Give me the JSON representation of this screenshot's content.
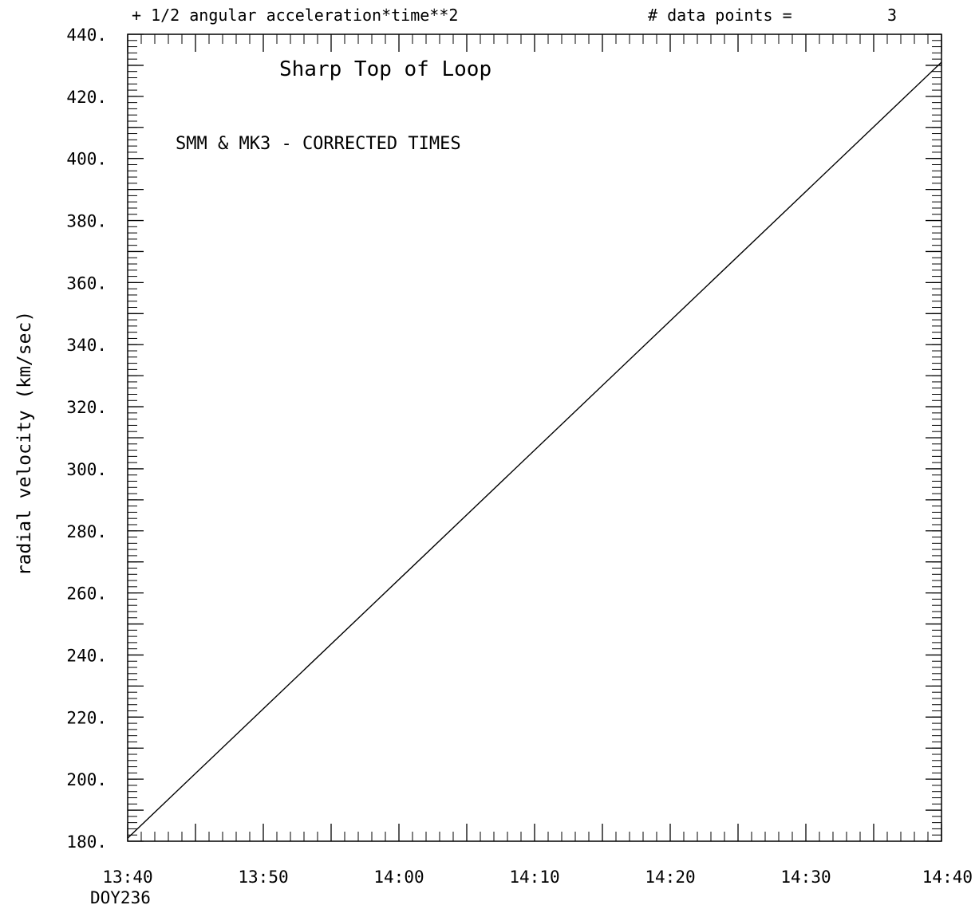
{
  "header": {
    "fit_description": "+ 1/2 angular acceleration*time**2",
    "data_points_label": "# data points =",
    "data_points_value": "3"
  },
  "chart_data": {
    "type": "line",
    "title": "Sharp Top of Loop",
    "annotation": "SMM & MK3 - CORRECTED TIMES",
    "xlabel": "",
    "ylabel": "radial velocity (km/sec)",
    "x_sublabel": "DOY236",
    "xlim": [
      "13:40",
      "14:40"
    ],
    "ylim": [
      180,
      440
    ],
    "x_ticks": [
      "13:40",
      "13:50",
      "14:00",
      "14:10",
      "14:20",
      "14:30",
      "14:40"
    ],
    "y_ticks": [
      "180.",
      "200.",
      "220.",
      "240.",
      "260.",
      "280.",
      "300.",
      "320.",
      "340.",
      "360.",
      "380.",
      "400.",
      "420.",
      "440."
    ],
    "grid": false,
    "series": [
      {
        "x": [
          "13:40",
          "14:40"
        ],
        "y": [
          181,
          431
        ],
        "color": "#000000"
      }
    ]
  }
}
